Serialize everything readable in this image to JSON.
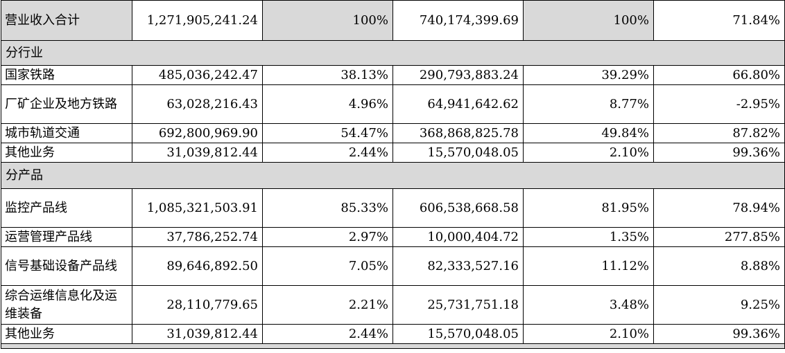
{
  "total": {
    "label": "营业收入合计",
    "revenue": "1,271,905,241.24",
    "revenue_share": "100%",
    "prior_revenue": "740,174,399.69",
    "prior_share": "100%",
    "change": "71.84%"
  },
  "sections": [
    {
      "title": "分行业",
      "rows": [
        {
          "label": "国家铁路",
          "revenue": "485,036,242.47",
          "revenue_share": "38.13%",
          "prior_revenue": "290,793,883.24",
          "prior_share": "39.29%",
          "change": "66.80%"
        },
        {
          "label": "厂矿企业及地方铁路",
          "revenue": "63,028,216.43",
          "revenue_share": "4.96%",
          "prior_revenue": "64,941,642.62",
          "prior_share": "8.77%",
          "change": "-2.95%"
        },
        {
          "label": "城市轨道交通",
          "revenue": "692,800,969.90",
          "revenue_share": "54.47%",
          "prior_revenue": "368,868,825.78",
          "prior_share": "49.84%",
          "change": "87.82%"
        },
        {
          "label": "其他业务",
          "revenue": "31,039,812.44",
          "revenue_share": "2.44%",
          "prior_revenue": "15,570,048.05",
          "prior_share": "2.10%",
          "change": "99.36%"
        }
      ]
    },
    {
      "title": "分产品",
      "rows": [
        {
          "label": "监控产品线",
          "revenue": "1,085,321,503.91",
          "revenue_share": "85.33%",
          "prior_revenue": "606,538,668.58",
          "prior_share": "81.95%",
          "change": "78.94%"
        },
        {
          "label": "运营管理产品线",
          "revenue": "37,786,252.74",
          "revenue_share": "2.97%",
          "prior_revenue": "10,000,404.72",
          "prior_share": "1.35%",
          "change": "277.85%"
        },
        {
          "label": "信号基础设备产品线",
          "revenue": "89,646,892.50",
          "revenue_share": "7.05%",
          "prior_revenue": "82,333,527.16",
          "prior_share": "11.12%",
          "change": "8.88%"
        },
        {
          "label": "综合运维信息化及运维装备",
          "revenue": "28,110,779.65",
          "revenue_share": "2.21%",
          "prior_revenue": "25,731,751.18",
          "prior_share": "3.48%",
          "change": "9.25%"
        },
        {
          "label": "其他业务",
          "revenue": "31,039,812.44",
          "revenue_share": "2.44%",
          "prior_revenue": "15,570,048.05",
          "prior_share": "2.10%",
          "change": "99.36%"
        }
      ]
    }
  ]
}
